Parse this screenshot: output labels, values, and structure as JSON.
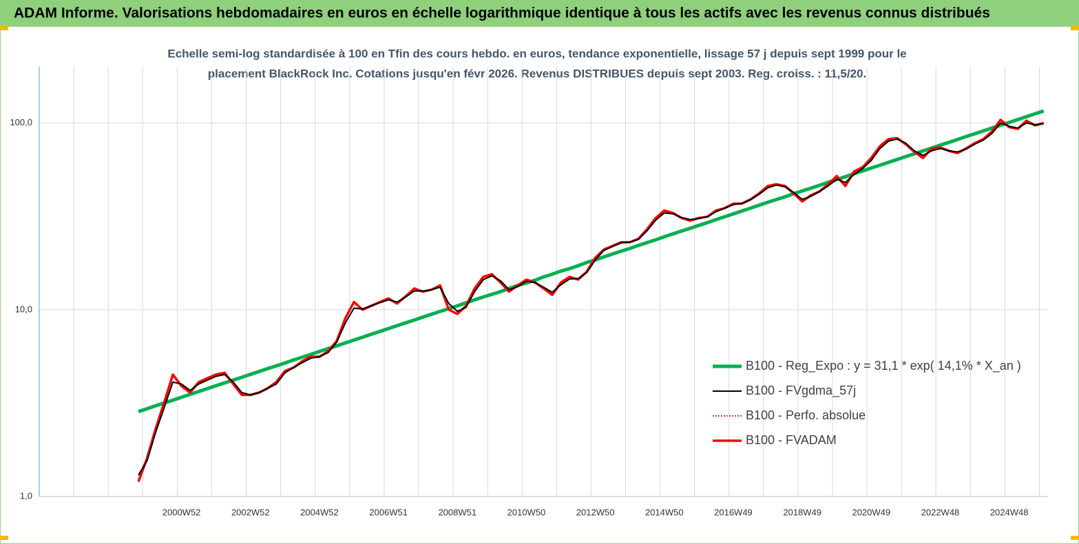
{
  "header": {
    "title": "ADAM Informe. Valorisations hebdomadaires en euros en échelle logarithmique identique à tous les actifs avec les revenus connus distribués"
  },
  "chart_data": {
    "type": "line",
    "title": [
      "Echelle semi-log standardisée à 100 en Tfin des cours hebdo. en euros, tendance exponentielle, lissage 57 j depuis sept 1999  pour le",
      "placement BlackRock Inc. Cotations jusqu'en févr 2026. Revenus DISTRIBUES depuis sept 2003. Reg. croiss. : 11,5/20."
    ],
    "log_scale": true,
    "grid": true,
    "legend": "lower right",
    "ylim": [
      1,
      200
    ],
    "yticks": [
      {
        "value": 1,
        "label": "1,0"
      },
      {
        "value": 10,
        "label": "10,0"
      },
      {
        "value": 100,
        "label": "100,0"
      }
    ],
    "categories": [
      null,
      null,
      null,
      null,
      null,
      null,
      null,
      null,
      null,
      null,
      null,
      null,
      null,
      null,
      null,
      null,
      "2000W52",
      null,
      null,
      null,
      null,
      null,
      null,
      null,
      "2002W52",
      null,
      null,
      null,
      null,
      null,
      null,
      null,
      "2004W52",
      null,
      null,
      null,
      null,
      null,
      null,
      null,
      "2006W51",
      null,
      null,
      null,
      null,
      null,
      null,
      null,
      "2008W51",
      null,
      null,
      null,
      null,
      null,
      null,
      null,
      "2010W50",
      null,
      null,
      null,
      null,
      null,
      null,
      null,
      "2012W50",
      null,
      null,
      null,
      null,
      null,
      null,
      null,
      "2014W50",
      null,
      null,
      null,
      null,
      null,
      null,
      null,
      "2016W49",
      null,
      null,
      null,
      null,
      null,
      null,
      null,
      "2018W49",
      null,
      null,
      null,
      null,
      null,
      null,
      null,
      "2020W49",
      null,
      null,
      null,
      null,
      null,
      null,
      null,
      "2022W48",
      null,
      null,
      null,
      null,
      null,
      null,
      null,
      "2024W48",
      null,
      null,
      null,
      null
    ],
    "series": [
      {
        "name": "B100 - Reg_Expo : y = 31,1 * exp( 14,1% *  X_an )",
        "color": "#00b050",
        "style": "solid",
        "values": [
          null,
          null,
          null,
          null,
          null,
          null,
          null,
          null,
          null,
          null,
          null,
          2.85,
          2.95,
          3.06,
          3.17,
          3.28,
          3.4,
          3.52,
          3.65,
          3.78,
          3.92,
          4.06,
          4.2,
          4.35,
          4.51,
          4.67,
          4.84,
          5.01,
          5.19,
          5.38,
          5.57,
          5.77,
          5.98,
          6.19,
          6.41,
          6.64,
          6.88,
          7.13,
          7.39,
          7.65,
          7.93,
          8.21,
          8.51,
          8.81,
          9.13,
          9.46,
          9.8,
          10.15,
          10.5,
          10.9,
          11.3,
          11.7,
          12.1,
          12.5,
          13.0,
          13.5,
          13.9,
          14.4,
          15.0,
          15.5,
          16.1,
          16.6,
          17.2,
          17.9,
          18.5,
          19.2,
          19.9,
          20.6,
          21.3,
          22.1,
          22.9,
          23.7,
          24.6,
          25.5,
          26.4,
          27.3,
          28.3,
          29.3,
          30.4,
          31.5,
          32.6,
          33.8,
          35.0,
          36.3,
          37.6,
          38.9,
          40.3,
          41.8,
          43.3,
          44.8,
          46.4,
          48.1,
          49.8,
          51.6,
          53.5,
          55.4,
          57.4,
          59.4,
          61.6,
          63.8,
          66.1,
          68.4,
          70.9,
          73.4,
          76.1,
          78.8,
          81.6,
          84.6,
          87.6,
          90.7,
          94.0,
          97.3,
          100.8,
          104.4,
          108.2,
          112.1,
          116.1
        ]
      },
      {
        "name": "B100 - FVgdma_57j",
        "color": "#000000",
        "style": "solid",
        "values": [
          null,
          null,
          null,
          null,
          null,
          null,
          null,
          null,
          null,
          null,
          null,
          1.3,
          1.55,
          2.2,
          3.0,
          4.1,
          4.0,
          3.7,
          4.0,
          4.2,
          4.4,
          4.5,
          4.1,
          3.6,
          3.5,
          3.6,
          3.8,
          4.0,
          4.6,
          4.9,
          5.2,
          5.5,
          5.6,
          5.9,
          6.7,
          8.5,
          10.2,
          10.1,
          10.5,
          10.9,
          11.3,
          11.0,
          11.7,
          12.6,
          12.6,
          12.8,
          13.2,
          10.8,
          9.8,
          10.3,
          12.5,
          14.5,
          15.2,
          14.3,
          12.8,
          13.3,
          14.2,
          14.0,
          13.2,
          12.4,
          13.6,
          14.6,
          14.7,
          15.8,
          18.5,
          20.8,
          21.8,
          22.8,
          23.0,
          23.8,
          26.5,
          30.2,
          33.0,
          32.6,
          31.2,
          30.4,
          30.8,
          31.5,
          33.5,
          35.0,
          36.5,
          37.2,
          38.8,
          41.5,
          45.0,
          46.5,
          45.5,
          42.5,
          39.0,
          40.5,
          43.0,
          46.0,
          50.0,
          48.0,
          53.0,
          57.0,
          63.0,
          73.0,
          80.0,
          82.0,
          78.0,
          71.0,
          67.0,
          71.0,
          73.0,
          71.0,
          70.0,
          72.5,
          77.0,
          81.0,
          88.0,
          100.0,
          96.0,
          94.0,
          100.0,
          98.0,
          99.0
        ]
      },
      {
        "name": "B100 - Perfo. absolue",
        "color": "#c00000",
        "style": "dotted",
        "values": [
          null,
          null,
          null,
          null,
          null,
          null,
          null,
          null,
          null,
          null,
          null,
          1.3,
          1.6,
          2.3,
          3.2,
          4.5,
          3.9,
          3.6,
          4.1,
          4.3,
          4.5,
          4.6,
          4.0,
          3.5,
          3.5,
          3.6,
          3.8,
          4.1,
          4.7,
          4.9,
          5.3,
          5.6,
          5.6,
          6.0,
          6.8,
          9.0,
          11.0,
          10.0,
          10.5,
          11.0,
          11.5,
          10.8,
          11.8,
          13.0,
          12.5,
          12.8,
          13.5,
          10.0,
          9.5,
          10.5,
          13.0,
          15.0,
          15.5,
          14.0,
          12.5,
          13.5,
          14.5,
          14.0,
          13.0,
          12.0,
          14.0,
          15.0,
          14.5,
          16.0,
          19.0,
          21.0,
          22.0,
          23.0,
          23.0,
          24.0,
          27.0,
          31.0,
          34.0,
          33.0,
          31.0,
          30.0,
          31.0,
          31.5,
          34.0,
          35.0,
          37.0,
          37.0,
          39.0,
          42.0,
          46.0,
          47.0,
          46.0,
          42.0,
          38.0,
          41.0,
          43.0,
          47.0,
          52.0,
          46.0,
          55.0,
          58.0,
          65.0,
          75.0,
          82.0,
          83.0,
          77.0,
          70.0,
          65.0,
          73.0,
          74.0,
          71.0,
          69.0,
          73.0,
          78.0,
          82.0,
          90.0,
          104.0,
          95.0,
          93.0,
          103.0,
          97.0,
          100.0
        ]
      },
      {
        "name": "B100 - FVADAM",
        "color": "#ff0000",
        "style": "solid",
        "values": [
          null,
          null,
          null,
          null,
          null,
          null,
          null,
          null,
          null,
          null,
          null,
          1.2,
          1.6,
          2.3,
          3.2,
          4.5,
          3.9,
          3.6,
          4.1,
          4.3,
          4.5,
          4.6,
          4.0,
          3.5,
          3.5,
          3.6,
          3.8,
          4.1,
          4.7,
          4.9,
          5.3,
          5.6,
          5.6,
          6.0,
          6.8,
          9.0,
          11.0,
          10.0,
          10.5,
          11.0,
          11.5,
          10.8,
          11.8,
          13.0,
          12.5,
          12.8,
          13.5,
          10.0,
          9.5,
          10.5,
          13.0,
          15.0,
          15.5,
          14.0,
          12.5,
          13.5,
          14.5,
          14.0,
          13.0,
          12.0,
          14.0,
          15.0,
          14.5,
          16.0,
          19.0,
          21.0,
          22.0,
          23.0,
          23.0,
          24.0,
          27.0,
          31.0,
          34.0,
          33.0,
          31.0,
          30.0,
          31.0,
          31.5,
          34.0,
          35.0,
          37.0,
          37.0,
          39.0,
          42.0,
          46.0,
          47.0,
          46.0,
          42.0,
          38.0,
          41.0,
          43.0,
          47.0,
          52.0,
          46.0,
          55.0,
          58.0,
          65.0,
          75.0,
          82.0,
          83.0,
          77.0,
          70.0,
          65.0,
          73.0,
          74.0,
          71.0,
          69.0,
          73.0,
          78.0,
          82.0,
          90.0,
          104.0,
          95.0,
          93.0,
          103.0,
          97.0,
          100.0
        ]
      }
    ]
  }
}
